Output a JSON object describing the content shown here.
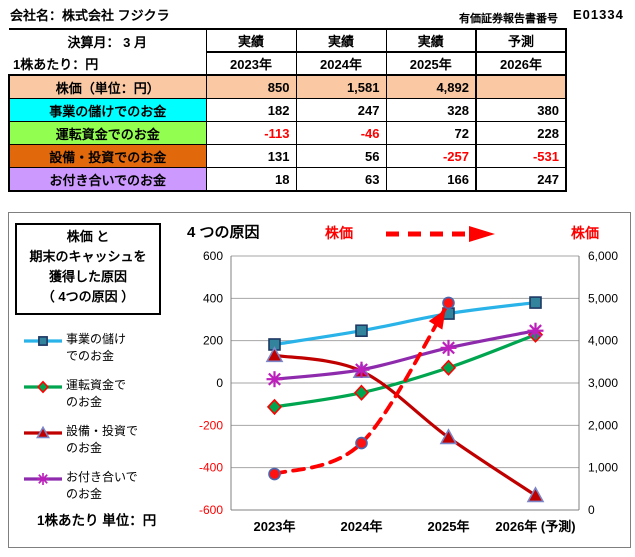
{
  "header": {
    "company_label": "会社名：株式会社 フジクラ",
    "report_label": "有価証券報告書番号",
    "report_number": "E01334"
  },
  "table": {
    "fiscal_month_label": "決算月： 3 月",
    "per_share_label": "1株あたり：円",
    "col_headers": [
      {
        "type": "実績",
        "year": "2023年"
      },
      {
        "type": "実績",
        "year": "2024年"
      },
      {
        "type": "実績",
        "year": "2025年"
      },
      {
        "type": "予測",
        "year": "2026年"
      }
    ],
    "rows": [
      {
        "label": "株価（単位：円）",
        "values": [
          "850",
          "1,581",
          "4,892",
          ""
        ],
        "bg": "#FAC9A3",
        "data_bg": "#FAC9A3"
      },
      {
        "label": "事業の儲けでのお金",
        "values": [
          "182",
          "247",
          "328",
          "380"
        ],
        "bg": "#00FFFF",
        "data_bg": "#FFFFFF"
      },
      {
        "label": "運転資金でのお金",
        "values": [
          "-113",
          "-46",
          "72",
          "228"
        ],
        "bg": "#92FF50",
        "data_bg": "#FFFFFF"
      },
      {
        "label": "設備・投資でのお金",
        "values": [
          "131",
          "56",
          "-257",
          "-531"
        ],
        "bg": "#E2690B",
        "data_bg": "#FFFFFF"
      },
      {
        "label": "お付き合いでのお金",
        "values": [
          "18",
          "63",
          "166",
          "247"
        ],
        "bg": "#CC99FF",
        "data_bg": "#FFFFFF"
      }
    ],
    "negative_color": "#FF0000"
  },
  "chart": {
    "side_box_lines": [
      "株価 と",
      "期末のキャッシュを",
      "獲得した原因",
      "（ 4つの原因 ）"
    ],
    "title": "4 つの原因",
    "header_left_label": "株価",
    "header_right_label": "株価",
    "footer_note": "1株あたり 単位：円",
    "legend": [
      {
        "label": "事業の儲け\nでのお金",
        "series": 0
      },
      {
        "label": "運転資金で\nのお金",
        "series": 1
      },
      {
        "label": "設備・投資で\nのお金",
        "series": 2
      },
      {
        "label": "お付き合いで\nのお金",
        "series": 3
      }
    ]
  },
  "chart_data": {
    "type": "line",
    "title": "4 つの原因",
    "categories": [
      "2023年",
      "2024年",
      "2025年",
      "2026年 (予測)"
    ],
    "series": [
      {
        "name": "事業の儲けでのお金",
        "values": [
          182,
          247,
          328,
          380
        ],
        "axis": "left",
        "color": "#29B3E8",
        "marker": "square",
        "marker_fill": "#31849B",
        "marker_stroke": "#1F3864",
        "dash": false
      },
      {
        "name": "運転資金でのお金",
        "values": [
          -113,
          -46,
          72,
          228
        ],
        "axis": "left",
        "color": "#00A550",
        "marker": "diamond",
        "marker_fill": "#00A550",
        "marker_stroke": "#FF0000",
        "dash": false
      },
      {
        "name": "設備・投資でのお金",
        "values": [
          131,
          56,
          -257,
          -531
        ],
        "axis": "left",
        "color": "#C00000",
        "marker": "triangle",
        "marker_fill": "#C00000",
        "marker_stroke": "#7B86C8",
        "dash": false
      },
      {
        "name": "お付き合いでのお金",
        "values": [
          18,
          63,
          166,
          247
        ],
        "axis": "left",
        "color": "#8E2BAD",
        "marker": "asterisk",
        "marker_fill": "#BC1FBC",
        "marker_stroke": "#BC1FBC",
        "dash": false
      },
      {
        "name": "株価",
        "values": [
          850,
          1581,
          4892,
          null
        ],
        "axis": "right",
        "color": "#FF0000",
        "marker": "circle",
        "marker_fill": "#FF1212",
        "marker_stroke": "#4A66AC",
        "dash": true,
        "arrow_end": true
      }
    ],
    "left_axis": {
      "min": -600,
      "max": 600,
      "step": 200,
      "negative_tick_color": "#FF0000"
    },
    "right_axis": {
      "min": 0,
      "max": 6000,
      "step": 1000
    },
    "grid": true,
    "legend_position": "left"
  }
}
